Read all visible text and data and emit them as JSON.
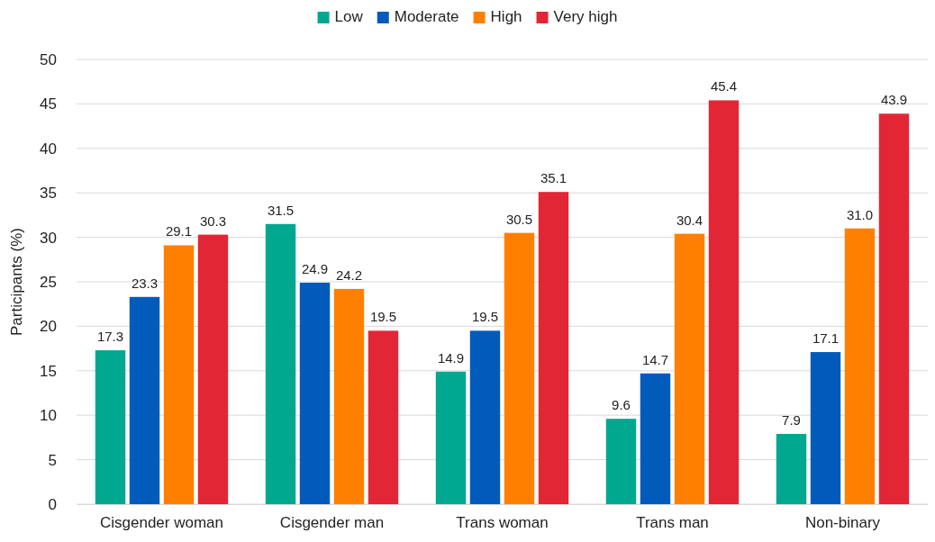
{
  "chart_data": {
    "type": "bar",
    "ylabel": "Participants (%)",
    "categories": [
      "Cisgender woman",
      "Cisgender man",
      "Trans woman",
      "Trans man",
      "Non-binary"
    ],
    "series": [
      {
        "name": "Low",
        "color": "#00a88f",
        "values": [
          17.3,
          31.5,
          14.9,
          9.6,
          7.9
        ],
        "value_labels": [
          "17.3",
          "31.5",
          "14.9",
          "9.6",
          "7.9"
        ]
      },
      {
        "name": "Moderate",
        "color": "#005bbb",
        "values": [
          23.3,
          24.9,
          19.5,
          14.7,
          17.1
        ],
        "value_labels": [
          "23.3",
          "24.9",
          "19.5",
          "14.7",
          "17.1"
        ]
      },
      {
        "name": "High",
        "color": "#ff8000",
        "values": [
          29.1,
          24.2,
          30.5,
          30.4,
          31.0
        ],
        "value_labels": [
          "29.1",
          "24.2",
          "30.5",
          "30.4",
          "31.0"
        ]
      },
      {
        "name": "Very high",
        "color": "#e32636",
        "values": [
          30.3,
          19.5,
          35.1,
          45.4,
          43.9
        ],
        "value_labels": [
          "30.3",
          "19.5",
          "35.1",
          "45.4",
          "43.9"
        ]
      }
    ],
    "ylim": [
      0,
      50
    ],
    "yticks": [
      0,
      5,
      10,
      15,
      20,
      25,
      30,
      35,
      40,
      45,
      50
    ],
    "grid": "y",
    "legend": "top"
  }
}
